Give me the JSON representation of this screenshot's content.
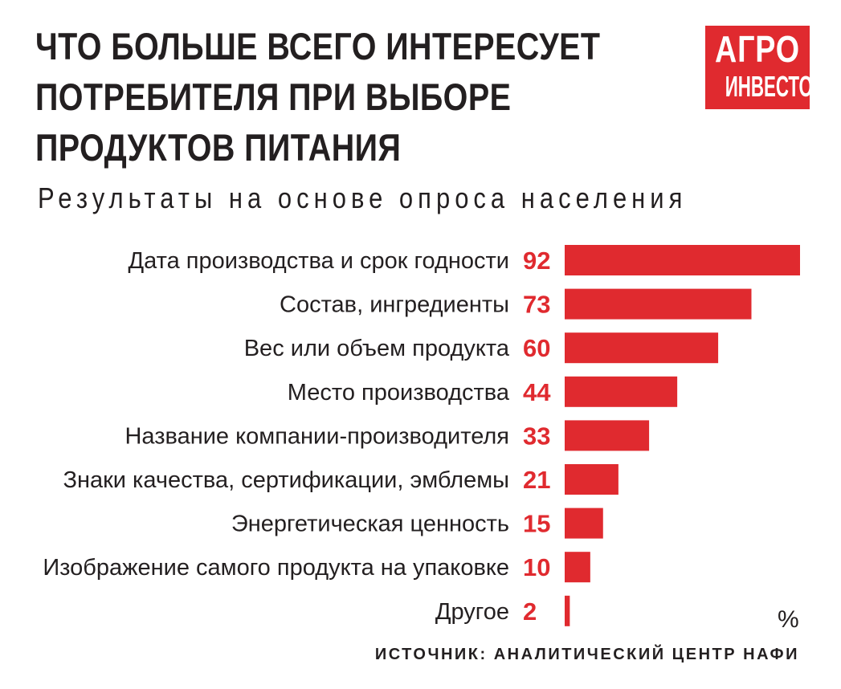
{
  "header": {
    "title_lines": [
      "ЧТО БОЛЬШЕ ВСЕГО ИНТЕРЕСУЕТ",
      "ПОТРЕБИТЕЛЯ ПРИ ВЫБОРЕ",
      "ПРОДУКТОВ ПИТАНИЯ"
    ],
    "subtitle": "Результаты на основе опроса населения"
  },
  "logo": {
    "line1": "АГРО",
    "line2": "ИНВЕСТОР"
  },
  "unit_label": "%",
  "source": "ИСТОЧНИК: АНАЛИТИЧЕСКИЙ ЦЕНТР НАФИ",
  "colors": {
    "bar": "#e02a2f",
    "value": "#e02a2f",
    "text": "#231f20",
    "logo_bg": "#e02a2f"
  },
  "chart_data": {
    "type": "bar",
    "orientation": "horizontal",
    "title": "ЧТО БОЛЬШЕ ВСЕГО ИНТЕРЕСУЕТ ПОТРЕБИТЕЛЯ ПРИ ВЫБОРЕ ПРОДУКТОВ ПИТАНИЯ",
    "subtitle": "Результаты на основе опроса населения",
    "categories": [
      "Дата производства и срок годности",
      "Состав, ингредиенты",
      "Вес или объем продукта",
      "Место производства",
      "Название компании-производителя",
      "Знаки качества, сертификации, эмблемы",
      "Энергетическая ценность",
      "Изображение самого продукта на упаковке",
      "Другое"
    ],
    "values": [
      92,
      73,
      60,
      44,
      33,
      21,
      15,
      10,
      2
    ],
    "unit": "%",
    "xlim": [
      0,
      92
    ],
    "grid": false,
    "legend": "none"
  }
}
